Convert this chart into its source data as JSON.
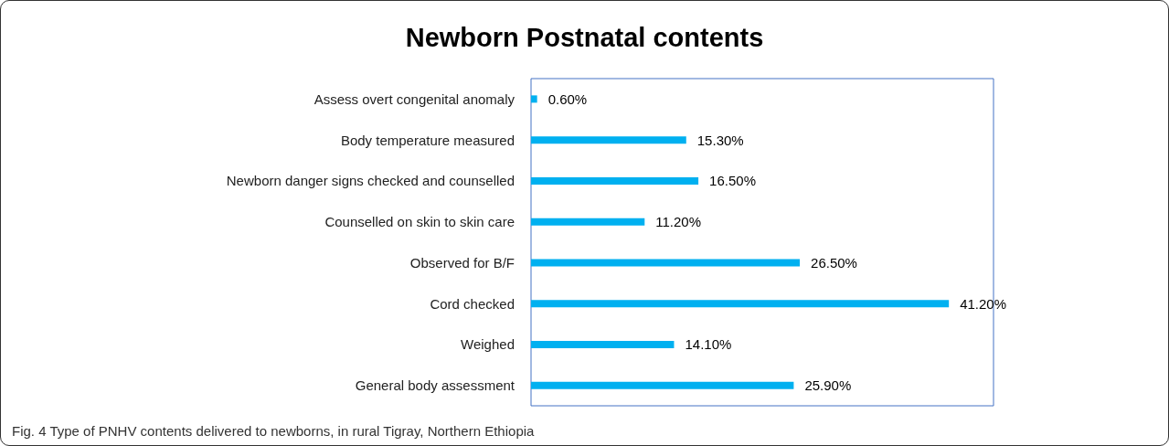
{
  "chart_data": {
    "type": "bar",
    "orientation": "horizontal",
    "title": "Newborn Postnatal contents",
    "categories": [
      "Assess overt congenital anomaly",
      "Body temperature measured",
      "Newborn danger signs checked and counselled",
      "Counselled on skin to skin care",
      "Observed for B/F",
      "Cord checked",
      "Weighed",
      "General body assessment"
    ],
    "values": [
      0.6,
      15.3,
      16.5,
      11.2,
      26.5,
      41.2,
      14.1,
      25.9
    ],
    "value_labels": [
      "0.60%",
      "15.30%",
      "16.50%",
      "11.20%",
      "26.50%",
      "41.20%",
      "14.10%",
      "25.90%"
    ],
    "color": "#00b0f0",
    "annotations": [
      "Fig. 4 Type of PNHV contents delivered to newborns, in rural Tigray, Northern Ethiopia"
    ]
  }
}
